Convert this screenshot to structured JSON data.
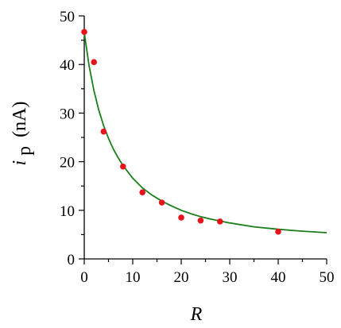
{
  "chart_data": {
    "type": "scatter",
    "xlabel": "R",
    "ylabel_symbol": "i",
    "ylabel_subscript": "p",
    "ylabel_unit": "(nA)",
    "xlim": [
      0,
      50
    ],
    "ylim": [
      0,
      50
    ],
    "x_ticks": [
      0,
      10,
      20,
      30,
      40,
      50
    ],
    "y_ticks": [
      0,
      10,
      20,
      30,
      40,
      50
    ],
    "grid": false,
    "series": [
      {
        "kind": "points",
        "color": "#e8141b",
        "x": [
          0,
          2,
          4,
          8,
          12,
          16,
          20,
          24,
          28,
          40
        ],
        "y": [
          46.7,
          40.5,
          26.2,
          19.0,
          13.7,
          11.6,
          8.5,
          7.9,
          7.7,
          5.6
        ]
      },
      {
        "kind": "fit-curve",
        "color": "#1a7f1a",
        "x": [
          0,
          1,
          2,
          3,
          4,
          5,
          6,
          7,
          8,
          10,
          12,
          14,
          16,
          18,
          20,
          22,
          24,
          26,
          28,
          30,
          35,
          40,
          45,
          50
        ],
        "y": [
          46.5,
          39.7,
          34.6,
          30.6,
          27.4,
          24.8,
          22.6,
          20.8,
          19.2,
          16.6,
          14.6,
          13.1,
          11.9,
          10.9,
          10.0,
          9.3,
          8.7,
          8.2,
          7.8,
          7.4,
          6.6,
          6.1,
          5.7,
          5.4
        ]
      }
    ]
  }
}
